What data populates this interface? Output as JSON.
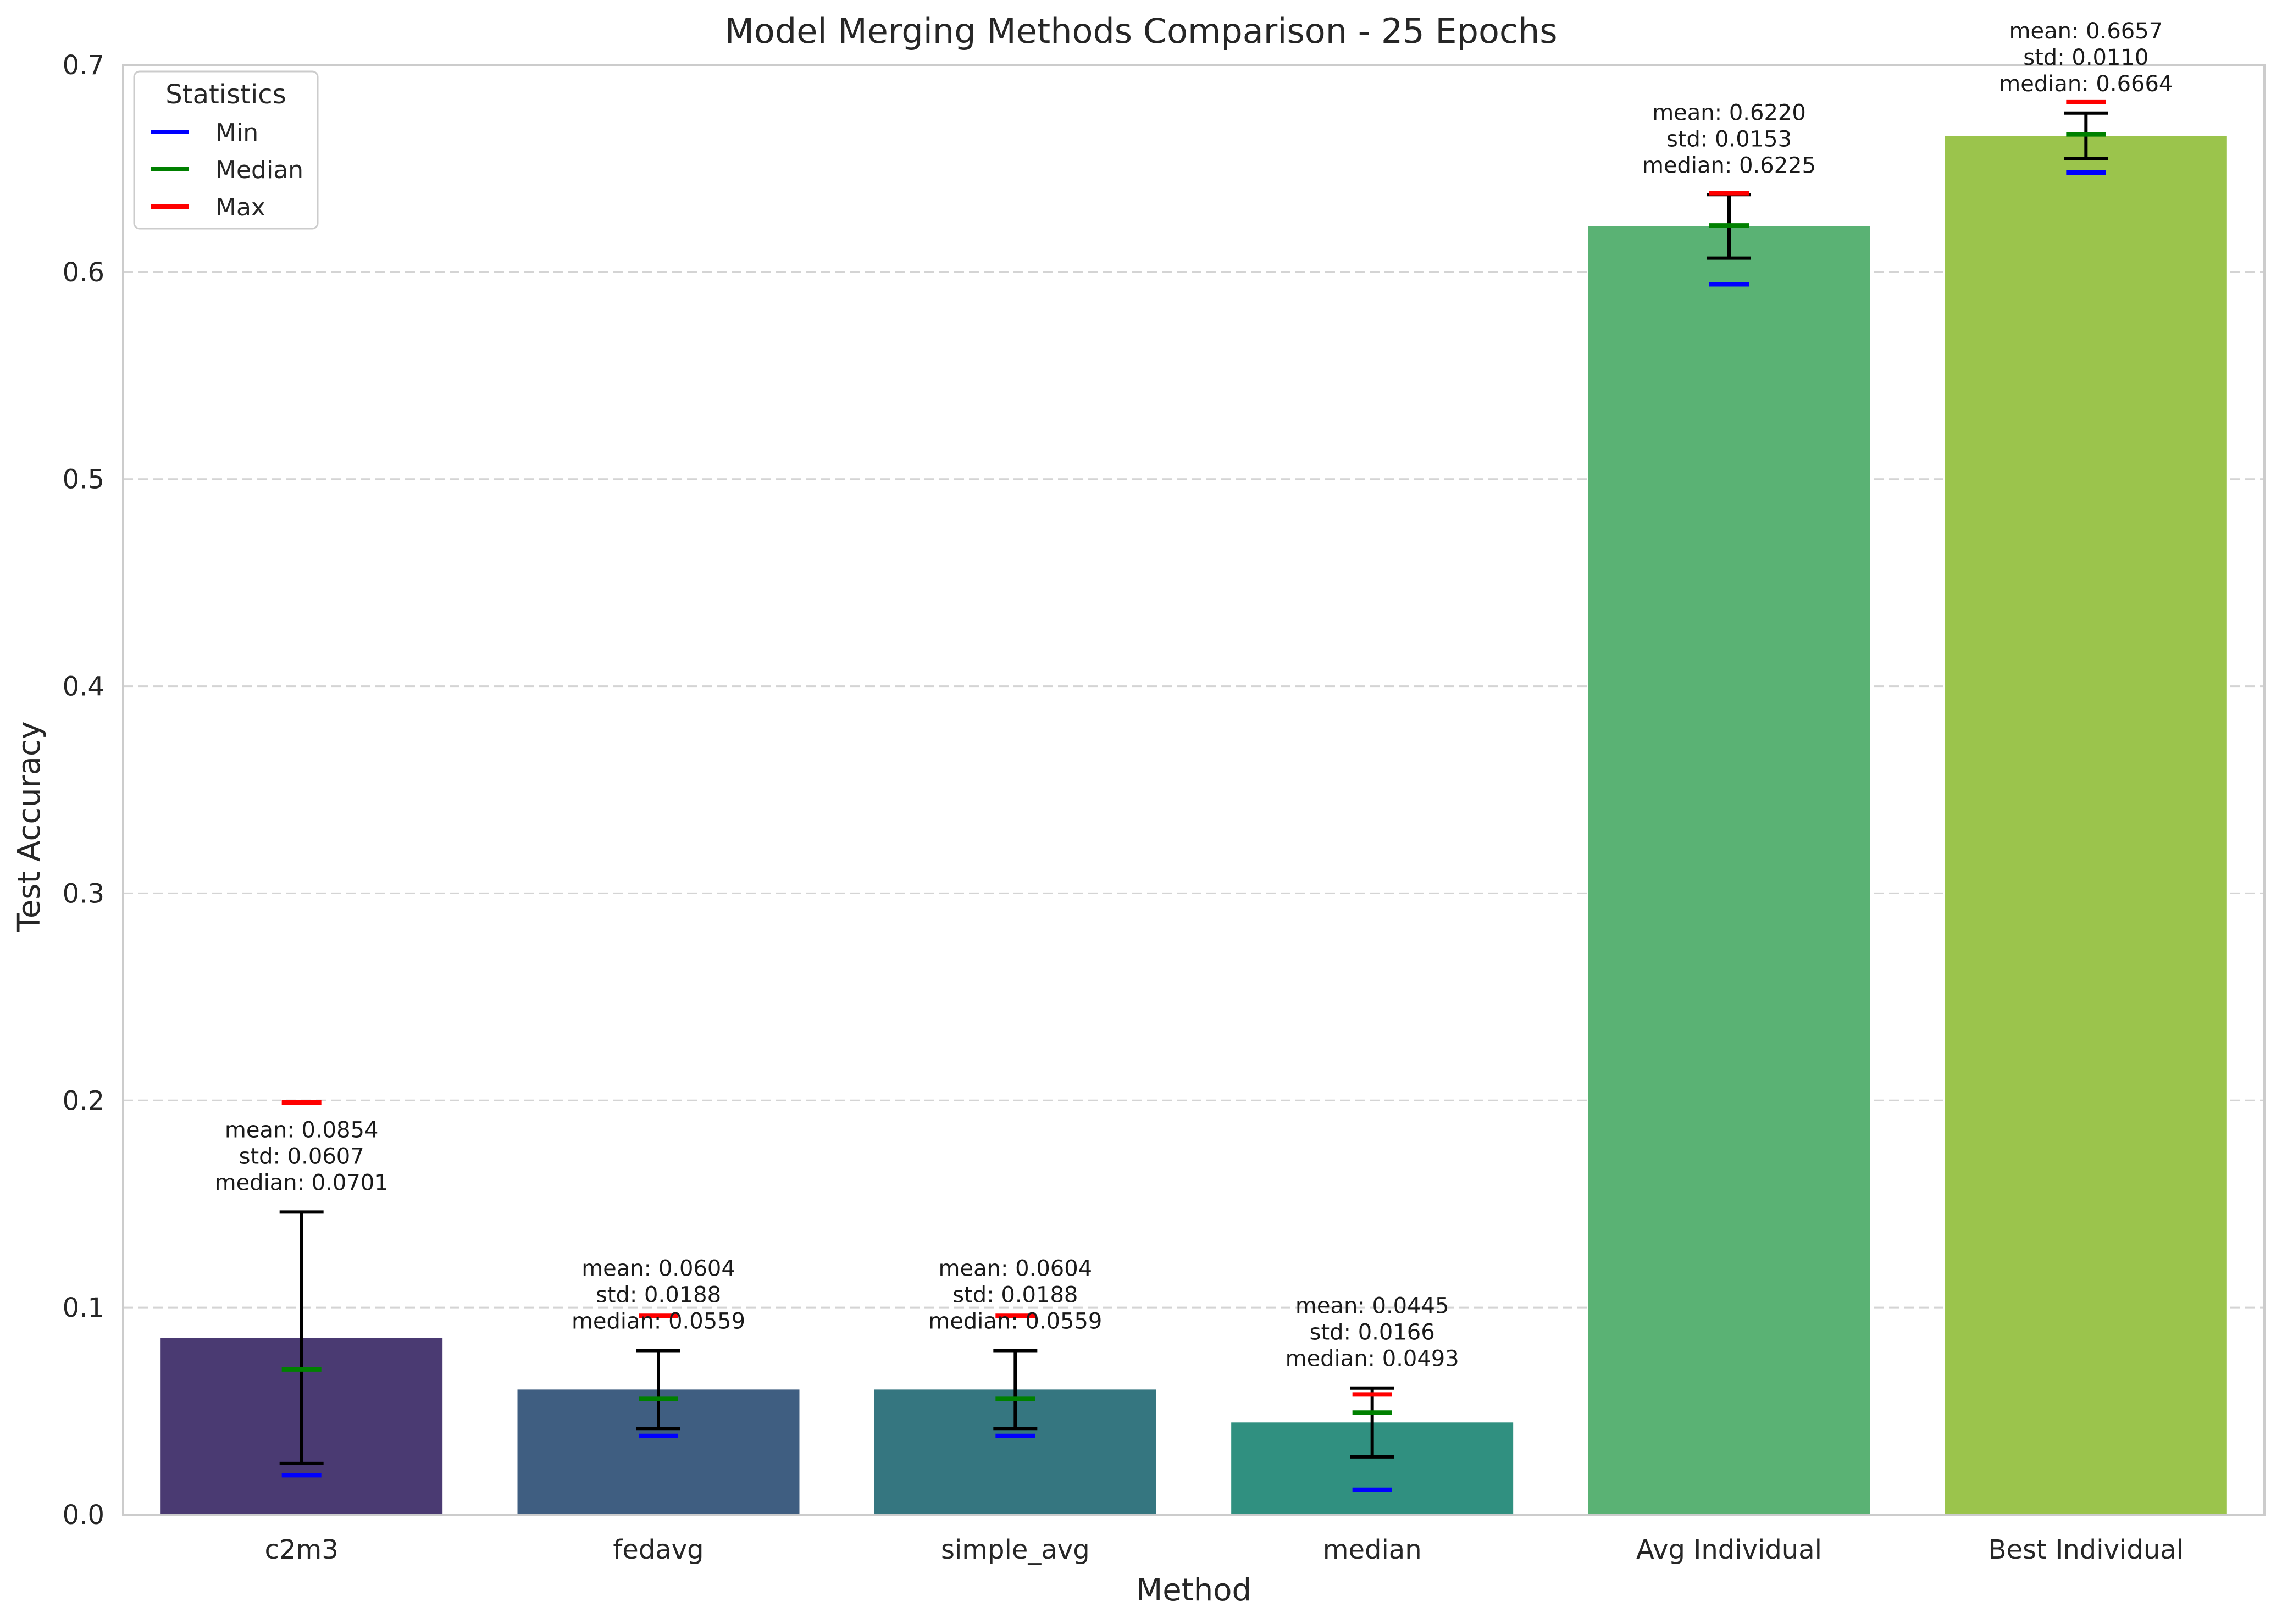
{
  "chart_data": {
    "type": "bar",
    "title": "Model Merging Methods Comparison - 25 Epochs",
    "xlabel": "Method",
    "ylabel": "Test Accuracy",
    "ylim": [
      0,
      0.7
    ],
    "yticks": [
      "0.0",
      "0.1",
      "0.2",
      "0.3",
      "0.4",
      "0.5",
      "0.6",
      "0.7"
    ],
    "grid": "y-dashed",
    "categories": [
      "c2m3",
      "fedavg",
      "simple_avg",
      "median",
      "Avg Individual",
      "Best Individual"
    ],
    "values": [
      0.0854,
      0.0604,
      0.0604,
      0.0445,
      0.622,
      0.6657
    ],
    "std": [
      0.0607,
      0.0188,
      0.0188,
      0.0166,
      0.0153,
      0.011
    ],
    "median": [
      0.0701,
      0.0559,
      0.0559,
      0.0493,
      0.6225,
      0.6664
    ],
    "min": [
      0.019,
      0.038,
      0.038,
      0.012,
      0.594,
      0.648
    ],
    "max": [
      0.199,
      0.096,
      0.096,
      0.058,
      0.638,
      0.682
    ],
    "bar_colors": [
      "#4a3a72",
      "#3f5e81",
      "#357680",
      "#309080",
      "#5ab274",
      "#9bc44c"
    ],
    "annotations": [
      [
        "mean: 0.0854",
        "std: 0.0607",
        "median: 0.0701"
      ],
      [
        "mean: 0.0604",
        "std: 0.0188",
        "median: 0.0559"
      ],
      [
        "mean: 0.0604",
        "std: 0.0188",
        "median: 0.0559"
      ],
      [
        "mean: 0.0445",
        "std: 0.0166",
        "median: 0.0493"
      ],
      [
        "mean: 0.6220",
        "std: 0.0153",
        "median: 0.6225"
      ],
      [
        "mean: 0.6657",
        "std: 0.0110",
        "median: 0.6664"
      ]
    ],
    "legend": {
      "title": "Statistics",
      "placement": "top-left",
      "entries": [
        {
          "label": "Min",
          "color": "#0000ff"
        },
        {
          "label": "Median",
          "color": "#008000"
        },
        {
          "label": "Max",
          "color": "#ff0000"
        }
      ]
    }
  }
}
